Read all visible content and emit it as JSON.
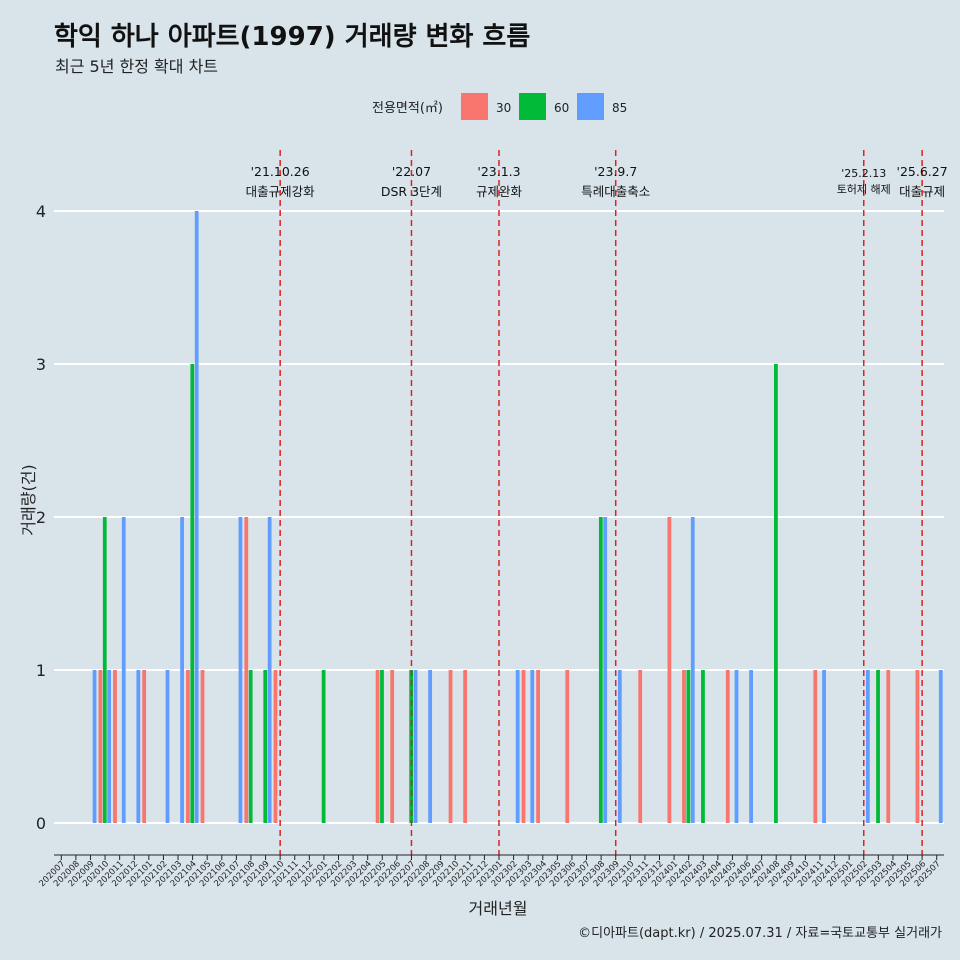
{
  "title": "학익 하나 아파트(1997) 거래량 변화 흐름",
  "subtitle": "최근 5년 한정 확대 차트",
  "caption": "©디아파트(dapt.kr) / 2025.07.31 / 자료=국토교통부 실거래가",
  "chart_data": {
    "type": "bar",
    "xlabel": "거래년월",
    "ylabel": "거래량(건)",
    "ylim": [
      0,
      4
    ],
    "yticks": [
      0,
      1,
      2,
      3,
      4
    ],
    "legend": {
      "title": "전용면적(㎡)",
      "position": "top"
    },
    "categories": [
      "202007",
      "202008",
      "202009",
      "202010",
      "202011",
      "202012",
      "202101",
      "202102",
      "202103",
      "202104",
      "202105",
      "202106",
      "202107",
      "202108",
      "202109",
      "202110",
      "202111",
      "202112",
      "202201",
      "202202",
      "202203",
      "202204",
      "202205",
      "202206",
      "202207",
      "202208",
      "202209",
      "202210",
      "202211",
      "202212",
      "202301",
      "202302",
      "202303",
      "202304",
      "202305",
      "202306",
      "202307",
      "202308",
      "202309",
      "202310",
      "202311",
      "202312",
      "202401",
      "202402",
      "202403",
      "202404",
      "202405",
      "202406",
      "202407",
      "202408",
      "202409",
      "202410",
      "202411",
      "202412",
      "202501",
      "202502",
      "202503",
      "202504",
      "202505",
      "202506",
      "202507"
    ],
    "series": [
      {
        "name": "30",
        "color": "#F8766D",
        "values": [
          0,
          0,
          0,
          1,
          1,
          0,
          1,
          0,
          0,
          1,
          1,
          0,
          0,
          2,
          0,
          1,
          0,
          0,
          0,
          0,
          0,
          0,
          1,
          1,
          0,
          0,
          0,
          1,
          1,
          0,
          0,
          0,
          1,
          1,
          0,
          1,
          0,
          0,
          0,
          0,
          1,
          0,
          2,
          1,
          0,
          0,
          1,
          0,
          0,
          0,
          0,
          0,
          1,
          0,
          0,
          0,
          0,
          1,
          0,
          1,
          0
        ]
      },
      {
        "name": "60",
        "color": "#00BA38",
        "values": [
          0,
          0,
          0,
          2,
          0,
          0,
          0,
          0,
          0,
          3,
          0,
          0,
          0,
          1,
          1,
          0,
          0,
          0,
          1,
          0,
          0,
          0,
          1,
          0,
          1,
          0,
          0,
          0,
          0,
          0,
          0,
          0,
          0,
          0,
          0,
          0,
          0,
          2,
          0,
          0,
          0,
          0,
          0,
          1,
          1,
          0,
          0,
          0,
          0,
          3,
          0,
          0,
          0,
          0,
          0,
          0,
          1,
          0,
          0,
          0,
          0
        ]
      },
      {
        "name": "85",
        "color": "#619CFF",
        "values": [
          0,
          0,
          1,
          1,
          2,
          1,
          0,
          1,
          2,
          4,
          0,
          0,
          2,
          0,
          2,
          0,
          0,
          0,
          0,
          0,
          0,
          0,
          0,
          0,
          1,
          1,
          0,
          0,
          0,
          0,
          0,
          1,
          1,
          0,
          0,
          0,
          0,
          2,
          1,
          0,
          0,
          0,
          0,
          2,
          0,
          0,
          1,
          1,
          0,
          0,
          0,
          0,
          1,
          0,
          0,
          1,
          0,
          0,
          0,
          0,
          1
        ]
      }
    ],
    "events": [
      {
        "date": "'21.10.26",
        "label": "대출규제강화",
        "category": "202110"
      },
      {
        "date": "'22.07",
        "label": "DSR 3단계",
        "category": "202207"
      },
      {
        "date": "'23.1.3",
        "label": "규제완화",
        "category": "202301"
      },
      {
        "date": "'23.9.7",
        "label": "특례대출축소",
        "category": "202309"
      },
      {
        "date": "'25.2.13",
        "label": "토허제 해제",
        "category": "202502"
      },
      {
        "date": "'25.6.27",
        "label": "대출규제",
        "category": "202506"
      }
    ]
  }
}
